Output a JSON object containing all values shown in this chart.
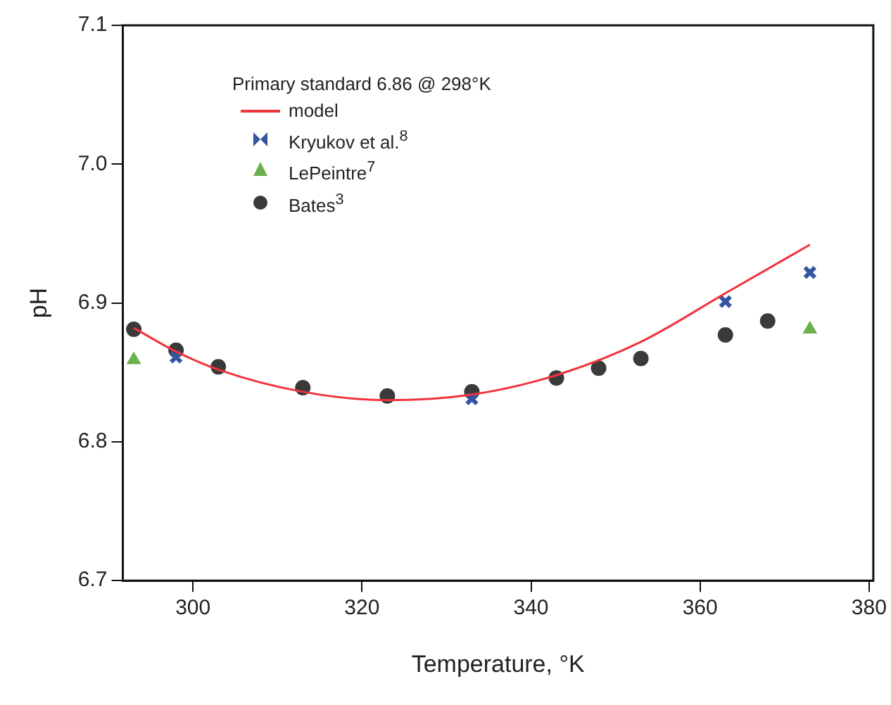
{
  "chart_data": {
    "type": "scatter",
    "xlabel": "Temperature, °K",
    "ylabel": "pH",
    "legend_title": "Primary standard 6.86 @ 298°K",
    "legend": "top left",
    "grid": false,
    "xlim": [
      291.7,
      380.5
    ],
    "xticks": [
      300,
      320,
      340,
      360,
      380
    ],
    "ylim": [
      6.7,
      7.1
    ],
    "yticks": [
      {
        "value": 6.7,
        "label": "6.7"
      },
      {
        "value": 6.8,
        "label": "6.8"
      },
      {
        "value": 6.9,
        "label": "6.9"
      },
      {
        "value": 7.0,
        "label": "7.0"
      },
      {
        "value": 7.1,
        "label": "7.1"
      }
    ],
    "series": [
      {
        "name": "model",
        "type": "line",
        "color": "#f0343c",
        "marker": "none",
        "line_style": "solid",
        "x": [
          293,
          298,
          303,
          313,
          323,
          333,
          343,
          353,
          363,
          373
        ],
        "values": [
          6.882,
          6.865,
          6.852,
          6.836,
          6.83,
          6.834,
          6.848,
          6.872,
          6.907,
          6.942
        ]
      },
      {
        "name": "Kryukov et al.$^{8}$",
        "color": "#3355a0",
        "marker": "cross",
        "x": [
          298,
          333,
          363,
          373
        ],
        "values": [
          6.861,
          6.831,
          6.901,
          6.922
        ]
      },
      {
        "name": "LePeintre$^{7}$",
        "color": "#6ab04c",
        "marker": "triangle",
        "x": [
          293,
          373
        ],
        "values": [
          6.859,
          6.881
        ]
      },
      {
        "name": "Bates$^{3}$",
        "color": "#3a3a3a",
        "marker": "circle",
        "x": [
          293,
          298,
          303,
          313,
          323,
          333,
          343,
          348,
          353,
          363,
          368
        ],
        "values": [
          6.881,
          6.866,
          6.854,
          6.839,
          6.833,
          6.836,
          6.846,
          6.853,
          6.86,
          6.877,
          6.887
        ]
      }
    ]
  }
}
